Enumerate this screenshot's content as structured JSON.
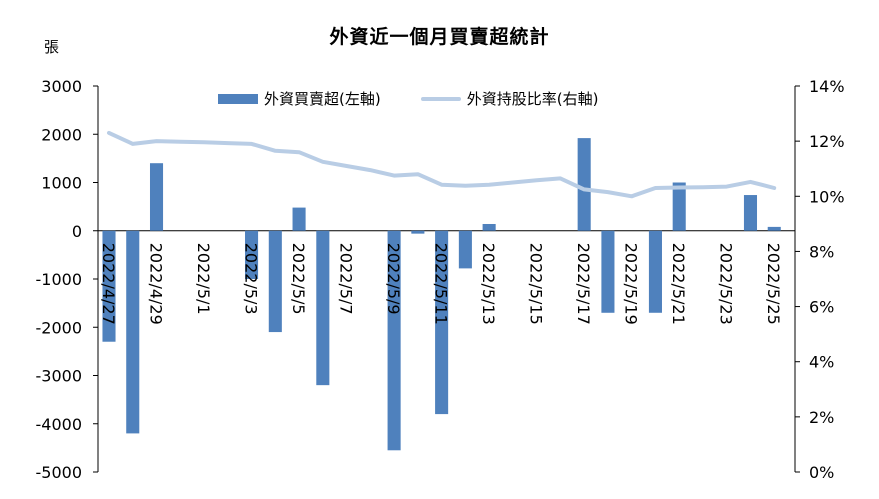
{
  "chart_data": {
    "type": "bar+line",
    "title": "外資近一個月買賣超統計",
    "y_left_unit": "張",
    "ylim_left": [
      -5000,
      3000
    ],
    "left_ticks": [
      "3000",
      "2000",
      "1000",
      "0",
      "-1000",
      "-2000",
      "-3000",
      "-4000",
      "-5000"
    ],
    "ylim_right": [
      0,
      14
    ],
    "right_ticks": [
      "14%",
      "12%",
      "10%",
      "8%",
      "6%",
      "4%",
      "2%",
      "0%"
    ],
    "x_tick_labels": [
      "2022/4/27",
      "2022/4/29",
      "2022/5/1",
      "2022/5/3",
      "2022/5/5",
      "2022/5/7",
      "2022/5/9",
      "2022/5/11",
      "2022/5/13",
      "2022/5/15",
      "2022/5/17",
      "2022/5/19",
      "2022/5/21",
      "2022/5/23",
      "2022/5/25"
    ],
    "x": [
      "2022/4/27",
      "2022/4/28",
      "2022/4/29",
      "2022/4/30",
      "2022/5/1",
      "2022/5/2",
      "2022/5/3",
      "2022/5/4",
      "2022/5/5",
      "2022/5/6",
      "2022/5/7",
      "2022/5/8",
      "2022/5/9",
      "2022/5/10",
      "2022/5/11",
      "2022/5/12",
      "2022/5/13",
      "2022/5/14",
      "2022/5/15",
      "2022/5/16",
      "2022/5/17",
      "2022/5/18",
      "2022/5/19",
      "2022/5/20",
      "2022/5/21",
      "2022/5/22",
      "2022/5/23",
      "2022/5/24",
      "2022/5/25",
      "2022/5/26"
    ],
    "series": [
      {
        "name": "外資買賣超(左軸)",
        "type": "bar",
        "axis": "left",
        "color": "#4f81bd",
        "values": [
          -2300,
          -4200,
          1400,
          null,
          null,
          null,
          -1000,
          -2100,
          480,
          -3200,
          null,
          null,
          -4550,
          -60,
          -3800,
          -780,
          140,
          null,
          null,
          null,
          1920,
          -1700,
          null,
          -1700,
          1000,
          null,
          null,
          740,
          80,
          null
        ]
      },
      {
        "name": "外資持股比率(右軸)",
        "type": "line",
        "axis": "right",
        "color": "#b9cde5",
        "values": [
          12.3,
          11.9,
          12.0,
          11.98,
          11.96,
          11.93,
          11.9,
          11.65,
          11.6,
          11.25,
          11.1,
          10.95,
          10.75,
          10.8,
          10.42,
          10.38,
          10.42,
          10.5,
          10.58,
          10.65,
          10.25,
          10.15,
          10.0,
          10.3,
          10.32,
          10.33,
          10.35,
          10.52,
          10.3,
          null
        ]
      }
    ],
    "legend_position": "top",
    "grid": false
  }
}
